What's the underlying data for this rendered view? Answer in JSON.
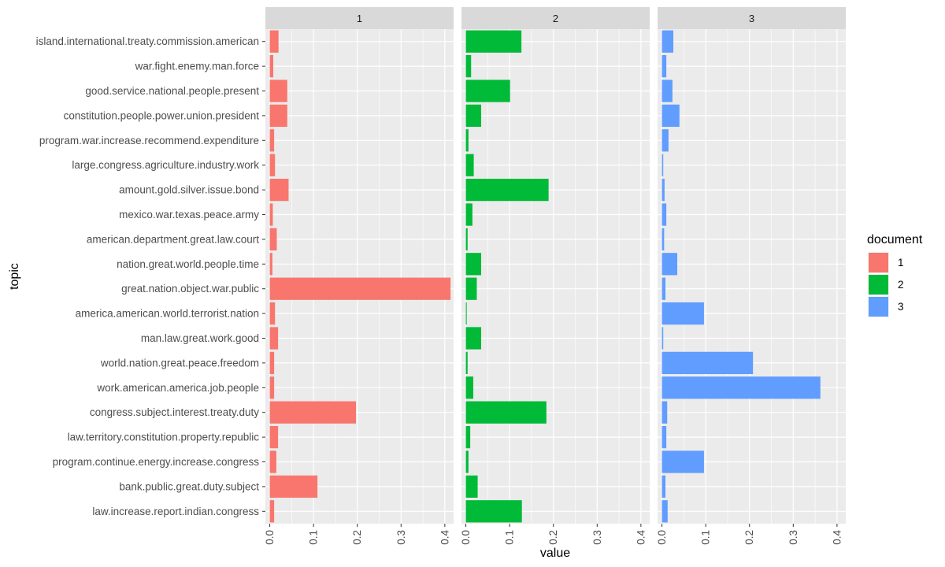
{
  "chart_data": {
    "type": "bar",
    "orientation": "horizontal",
    "facet_by": "document",
    "xlabel": "value",
    "ylabel": "topic",
    "xlim": [
      -0.01,
      0.42
    ],
    "x_ticks": [
      0.0,
      0.1,
      0.2,
      0.3,
      0.4
    ],
    "x_tick_labels": [
      "0.0",
      "0.1",
      "0.2",
      "0.3",
      "0.4"
    ],
    "grid": true,
    "legend": {
      "title": "document",
      "placement": "right",
      "entries": [
        {
          "label": "1",
          "color": "#F8766D"
        },
        {
          "label": "2",
          "color": "#00BA38"
        },
        {
          "label": "3",
          "color": "#619CFF"
        }
      ]
    },
    "categories": [
      "island.international.treaty.commission.american",
      "war.fight.enemy.man.force",
      "good.service.national.people.present",
      "constitution.people.power.union.president",
      "program.war.increase.recommend.expenditure",
      "large.congress.agriculture.industry.work",
      "amount.gold.silver.issue.bond",
      "mexico.war.texas.peace.army",
      "american.department.great.law.court",
      "nation.great.world.people.time",
      "great.nation.object.war.public",
      "america.american.world.terrorist.nation",
      "man.law.great.work.good",
      "world.nation.great.peace.freedom",
      "work.american.america.job.people",
      "congress.subject.interest.treaty.duty",
      "law.territory.constitution.property.republic",
      "program.continue.energy.increase.congress",
      "bank.public.great.duty.subject",
      "law.increase.report.indian.congress"
    ],
    "series": [
      {
        "name": "1",
        "color": "#F8766D",
        "values": [
          0.02,
          0.008,
          0.04,
          0.04,
          0.01,
          0.012,
          0.043,
          0.007,
          0.016,
          0.006,
          0.413,
          0.012,
          0.019,
          0.01,
          0.01,
          0.197,
          0.019,
          0.015,
          0.109,
          0.01
        ]
      },
      {
        "name": "2",
        "color": "#00BA38",
        "values": [
          0.127,
          0.012,
          0.101,
          0.035,
          0.006,
          0.018,
          0.189,
          0.015,
          0.004,
          0.035,
          0.025,
          0.002,
          0.035,
          0.004,
          0.017,
          0.184,
          0.01,
          0.006,
          0.027,
          0.128
        ]
      },
      {
        "name": "3",
        "color": "#619CFF",
        "values": [
          0.026,
          0.01,
          0.024,
          0.04,
          0.015,
          0.003,
          0.006,
          0.01,
          0.005,
          0.035,
          0.008,
          0.096,
          0.003,
          0.208,
          0.362,
          0.012,
          0.01,
          0.096,
          0.008,
          0.013
        ]
      }
    ]
  }
}
